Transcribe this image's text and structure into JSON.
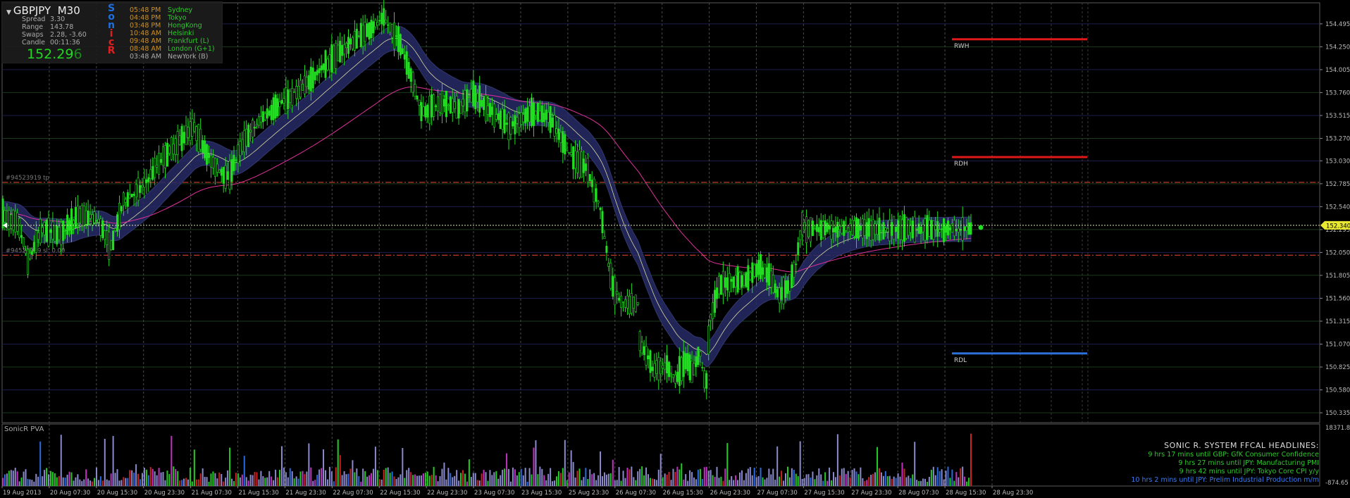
{
  "header": {
    "symbol": "GBPJPY",
    "timeframe": "M30",
    "stats": [
      {
        "label": "Spread",
        "value": "3.30"
      },
      {
        "label": "Range",
        "value": "143.78"
      },
      {
        "label": "Swaps",
        "value": "2.28, -3.60"
      },
      {
        "label": "Candle",
        "value": "00:11:36"
      }
    ],
    "price_main": "152.29",
    "price_last_digit": "6",
    "sonic_letters": [
      "S",
      "o",
      "n",
      "i",
      "c",
      "R"
    ],
    "sonic_colors": [
      "#1e6fe0",
      "#1e6fe0",
      "#1e6fe0",
      "#e02020",
      "#e02020",
      "#e02020"
    ]
  },
  "sessions": [
    {
      "time": "05:48 PM",
      "name": "Sydney",
      "time_color": "#d09020",
      "name_color": "#2ec82e"
    },
    {
      "time": "04:48 PM",
      "name": "Tokyo",
      "time_color": "#d09020",
      "name_color": "#2ec82e"
    },
    {
      "time": "03:48 PM",
      "name": "HongKong",
      "time_color": "#d09020",
      "name_color": "#2ec82e"
    },
    {
      "time": "10:48 AM",
      "name": "Helsinki",
      "time_color": "#d09020",
      "name_color": "#2ec82e"
    },
    {
      "time": "09:48 AM",
      "name": "Frankfurt  (L)",
      "time_color": "#d09020",
      "name_color": "#2ec82e"
    },
    {
      "time": "08:48 AM",
      "name": "London  (G+1)",
      "time_color": "#d09020",
      "name_color": "#2ec82e"
    },
    {
      "time": "03:48 AM",
      "name": "NewYork  (B)",
      "time_color": "#aaaaaa",
      "name_color": "#aaaaaa"
    }
  ],
  "levels": [
    {
      "label": "RWH",
      "price": 154.33,
      "color": "#e01818"
    },
    {
      "label": "RDH",
      "price": 153.07,
      "color": "#e01818"
    },
    {
      "label": "RDL",
      "price": 150.97,
      "color": "#2c70d8"
    }
  ],
  "order_lines": [
    {
      "label": "#94523919 tp",
      "price": 152.8
    },
    {
      "label": "#94523919 sl: 0.00",
      "price": 152.02
    }
  ],
  "current_price": {
    "label": "152.340",
    "value": 152.34
  },
  "indicator": {
    "name": "SonicR PVA",
    "max_label": "18371.85",
    "min_label": "-874.65"
  },
  "headlines": {
    "title": "SONIC R. SYSTEM  FFCAL HEADLINES:",
    "items": [
      {
        "text": "9 hrs 17 mins until GBP: GfK Consumer Confidence",
        "color": "#2ec82e"
      },
      {
        "text": "9 hrs 27 mins until JPY: Manufacturing PMI",
        "color": "#2ec82e"
      },
      {
        "text": "9 hrs 42 mins until JPY: Tokyo Core CPI y/y",
        "color": "#2ec82e"
      },
      {
        "text": "10 hrs 2 mins until JPY: Prelim Industrial Production m/m",
        "color": "#3b7cf0"
      }
    ]
  },
  "chart_data": {
    "type": "candlestick",
    "symbol": "GBPJPY",
    "timeframe": "M30",
    "y_ticks": [
      154.495,
      154.25,
      154.005,
      153.76,
      153.515,
      153.27,
      153.03,
      152.785,
      152.54,
      152.295,
      152.05,
      151.805,
      151.56,
      151.315,
      151.07,
      150.825,
      150.58,
      150.335
    ],
    "ylim": [
      150.23,
      154.72
    ],
    "x_labels": [
      "19 Aug 2013",
      "20 Aug 07:30",
      "20 Aug 15:30",
      "20 Aug 23:30",
      "21 Aug 07:30",
      "21 Aug 15:30",
      "21 Aug 23:30",
      "22 Aug 07:30",
      "22 Aug 15:30",
      "22 Aug 23:30",
      "23 Aug 07:30",
      "23 Aug 15:30",
      "25 Aug 23:30",
      "26 Aug 07:30",
      "26 Aug 15:30",
      "26 Aug 23:30",
      "27 Aug 07:30",
      "27 Aug 15:30",
      "27 Aug 23:30",
      "28 Aug 07:30",
      "28 Aug 15:30",
      "28 Aug 23:30"
    ],
    "price_path": [
      [
        0,
        152.45
      ],
      [
        0.025,
        152.35
      ],
      [
        0.04,
        151.95
      ],
      [
        0.06,
        152.3
      ],
      [
        0.09,
        152.25
      ],
      [
        0.12,
        152.45
      ],
      [
        0.15,
        152.4
      ],
      [
        0.17,
        152.1
      ],
      [
        0.19,
        152.6
      ],
      [
        0.22,
        152.75
      ],
      [
        0.25,
        153.05
      ],
      [
        0.28,
        153.25
      ],
      [
        0.3,
        153.4
      ],
      [
        0.33,
        153.0
      ],
      [
        0.355,
        152.85
      ],
      [
        0.38,
        153.25
      ],
      [
        0.41,
        153.5
      ],
      [
        0.44,
        153.65
      ],
      [
        0.47,
        153.8
      ],
      [
        0.5,
        154.0
      ],
      [
        0.54,
        154.25
      ],
      [
        0.57,
        154.4
      ],
      [
        0.6,
        154.55
      ],
      [
        0.625,
        154.3
      ],
      [
        0.64,
        154.0
      ],
      [
        0.66,
        153.55
      ],
      [
        0.69,
        153.65
      ],
      [
        0.72,
        153.6
      ],
      [
        0.74,
        153.75
      ],
      [
        0.77,
        153.55
      ],
      [
        0.8,
        153.4
      ],
      [
        0.83,
        153.55
      ],
      [
        0.86,
        153.5
      ],
      [
        0.88,
        153.25
      ],
      [
        0.9,
        153.05
      ],
      [
        0.92,
        152.95
      ],
      [
        0.94,
        152.55
      ],
      [
        0.95,
        152.1
      ],
      [
        0.96,
        151.7
      ],
      [
        0.975,
        151.5
      ]
    ],
    "price_path_2": [
      [
        0,
        151.1
      ],
      [
        0.04,
        150.8
      ],
      [
        0.08,
        150.85
      ],
      [
        0.11,
        150.7
      ],
      [
        0.14,
        150.9
      ],
      [
        0.16,
        150.75
      ],
      [
        0.18,
        151.0
      ],
      [
        0.2,
        150.6
      ],
      [
        0.21,
        151.3
      ],
      [
        0.24,
        151.7
      ],
      [
        0.28,
        151.75
      ],
      [
        0.32,
        151.75
      ],
      [
        0.36,
        151.9
      ],
      [
        0.39,
        151.8
      ],
      [
        0.42,
        151.6
      ],
      [
        0.45,
        151.7
      ],
      [
        0.47,
        151.9
      ],
      [
        0.49,
        152.35
      ],
      [
        0.5,
        152.3
      ]
    ]
  }
}
